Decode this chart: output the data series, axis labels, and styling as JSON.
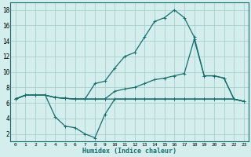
{
  "xlabel": "Humidex (Indice chaleur)",
  "background_color": "#d4eeee",
  "grid_color": "#aacfcf",
  "line_color": "#1a6b6b",
  "xlim": [
    -0.5,
    23.5
  ],
  "ylim": [
    1,
    19
  ],
  "xticks": [
    0,
    1,
    2,
    3,
    4,
    5,
    6,
    7,
    8,
    9,
    10,
    11,
    12,
    13,
    14,
    15,
    16,
    17,
    18,
    19,
    20,
    21,
    22,
    23
  ],
  "yticks": [
    2,
    4,
    6,
    8,
    10,
    12,
    14,
    16,
    18
  ],
  "series": [
    {
      "x": [
        0,
        1,
        2,
        3,
        4,
        5,
        6,
        7,
        8,
        9,
        10,
        11,
        12,
        13,
        14,
        15,
        16,
        17,
        18,
        19,
        20,
        21,
        22,
        23
      ],
      "y": [
        6.5,
        7.0,
        7.0,
        7.0,
        6.7,
        6.6,
        6.5,
        6.5,
        6.5,
        6.5,
        6.5,
        6.5,
        6.5,
        6.5,
        6.5,
        6.5,
        6.5,
        6.5,
        6.5,
        6.5,
        6.5,
        6.5,
        6.5,
        6.2
      ]
    },
    {
      "x": [
        0,
        1,
        2,
        3,
        4,
        5,
        6,
        7,
        8,
        9,
        10,
        11,
        12,
        13,
        14,
        15,
        16,
        17,
        18,
        19,
        20,
        21,
        22,
        23
      ],
      "y": [
        6.5,
        7.0,
        7.0,
        7.0,
        4.2,
        3.0,
        2.8,
        2.0,
        1.5,
        4.5,
        6.5,
        6.5,
        6.5,
        6.5,
        6.5,
        6.5,
        6.5,
        6.5,
        6.5,
        6.5,
        6.5,
        6.5,
        6.5,
        6.2
      ]
    },
    {
      "x": [
        0,
        1,
        2,
        3,
        4,
        5,
        6,
        7,
        8,
        9,
        10,
        11,
        12,
        13,
        14,
        15,
        16,
        17,
        18,
        19,
        20,
        21,
        22,
        23
      ],
      "y": [
        6.5,
        7.0,
        7.0,
        7.0,
        6.7,
        6.6,
        6.5,
        6.5,
        6.5,
        6.5,
        7.5,
        7.8,
        8.0,
        8.5,
        9.0,
        9.2,
        9.5,
        9.8,
        14.2,
        9.5,
        9.5,
        9.2,
        6.5,
        6.2
      ]
    },
    {
      "x": [
        0,
        1,
        2,
        3,
        4,
        5,
        6,
        7,
        8,
        9,
        10,
        11,
        12,
        13,
        14,
        15,
        16,
        17,
        18,
        19,
        20,
        21,
        22,
        23
      ],
      "y": [
        6.5,
        7.0,
        7.0,
        7.0,
        6.7,
        6.6,
        6.5,
        6.5,
        8.5,
        8.8,
        10.5,
        12.0,
        12.5,
        14.5,
        16.5,
        17.0,
        18.0,
        17.0,
        14.5,
        9.5,
        9.5,
        9.2,
        6.5,
        6.2
      ]
    }
  ]
}
